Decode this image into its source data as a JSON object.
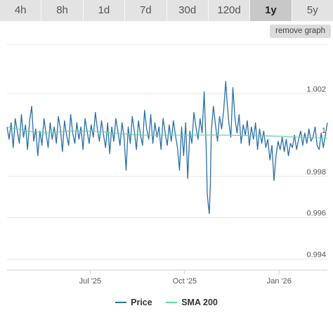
{
  "tabs": [
    {
      "label": "4h"
    },
    {
      "label": "8h"
    },
    {
      "label": "1d"
    },
    {
      "label": "7d"
    },
    {
      "label": "30d"
    },
    {
      "label": "120d"
    },
    {
      "label": "1y"
    },
    {
      "label": "5y"
    }
  ],
  "active_tab": "1y",
  "remove_label": "remove graph",
  "colors": {
    "price": "#2a6fa8",
    "sma": "#5ed69a",
    "grid": "#e6e6e6"
  },
  "chart_data": {
    "type": "line",
    "ylim": [
      0.9935,
      1.0045
    ],
    "yticks": [
      {
        "value": 1.002,
        "label": "1.002"
      },
      {
        "value": 1.0,
        "label": "1"
      },
      {
        "value": 0.998,
        "label": "0.998"
      },
      {
        "value": 0.996,
        "label": "0.996"
      },
      {
        "value": 0.994,
        "label": "0.994"
      }
    ],
    "xlim": [
      "2025-04-11",
      "2026-02-17"
    ],
    "xticks": [
      {
        "date": "2025-07-01",
        "label": "Jul '25"
      },
      {
        "date": "2025-10-01",
        "label": "Oct '25"
      },
      {
        "date": "2026-01-01",
        "label": "Jan '26"
      }
    ],
    "grid": true,
    "legend": "bottom",
    "series": [
      {
        "name": "Price",
        "points": [
          [
            "2025-04-11",
            1.0004
          ],
          [
            "2025-04-13",
            0.9998
          ],
          [
            "2025-04-15",
            1.0006
          ],
          [
            "2025-04-17",
            0.9994
          ],
          [
            "2025-04-19",
            1.0008
          ],
          [
            "2025-04-21",
            1.0002
          ],
          [
            "2025-04-23",
            0.9996
          ],
          [
            "2025-04-25",
            1.001
          ],
          [
            "2025-04-27",
            0.9999
          ],
          [
            "2025-04-29",
            1.0005
          ],
          [
            "2025-05-01",
            0.9993
          ],
          [
            "2025-05-03",
            1.0007
          ],
          [
            "2025-05-05",
            1.0014
          ],
          [
            "2025-05-07",
            0.9997
          ],
          [
            "2025-05-09",
            1.0003
          ],
          [
            "2025-05-11",
            0.999
          ],
          [
            "2025-05-13",
            1.0002
          ],
          [
            "2025-05-15",
            0.9995
          ],
          [
            "2025-05-17",
            1.0008
          ],
          [
            "2025-05-19",
            1.0001
          ],
          [
            "2025-05-21",
            0.9994
          ],
          [
            "2025-05-23",
            1.0006
          ],
          [
            "2025-05-25",
            0.9998
          ],
          [
            "2025-05-27",
            1.0004
          ],
          [
            "2025-05-29",
            0.9996
          ],
          [
            "2025-05-31",
            1.0009
          ],
          [
            "2025-06-02",
            1.0003
          ],
          [
            "2025-06-04",
            0.9992
          ],
          [
            "2025-06-06",
            1.0007
          ],
          [
            "2025-06-08",
            1.0
          ],
          [
            "2025-06-10",
            0.9995
          ],
          [
            "2025-06-12",
            1.001
          ],
          [
            "2025-06-14",
            1.0001
          ],
          [
            "2025-06-16",
            0.9996
          ],
          [
            "2025-06-18",
            1.0006
          ],
          [
            "2025-06-20",
            0.9998
          ],
          [
            "2025-06-22",
            1.0004
          ],
          [
            "2025-06-24",
            0.9993
          ],
          [
            "2025-06-26",
            1.0008
          ],
          [
            "2025-06-28",
            1.0002
          ],
          [
            "2025-06-30",
            0.9996
          ],
          [
            "2025-07-02",
            1.0005
          ],
          [
            "2025-07-04",
            0.9999
          ],
          [
            "2025-07-06",
            1.0011
          ],
          [
            "2025-07-08",
            1.0003
          ],
          [
            "2025-07-10",
            0.9997
          ],
          [
            "2025-07-12",
            1.0007
          ],
          [
            "2025-07-14",
            1.0
          ],
          [
            "2025-07-16",
            0.9994
          ],
          [
            "2025-07-18",
            1.0006
          ],
          [
            "2025-07-20",
            0.9991
          ],
          [
            "2025-07-22",
            1.0004
          ],
          [
            "2025-07-24",
            0.9997
          ],
          [
            "2025-07-26",
            1.0008
          ],
          [
            "2025-07-28",
            1.0002
          ],
          [
            "2025-07-30",
            0.9995
          ],
          [
            "2025-08-01",
            1.0006
          ],
          [
            "2025-08-03",
            0.9999
          ],
          [
            "2025-08-05",
            0.9983
          ],
          [
            "2025-08-07",
            1.0004
          ],
          [
            "2025-08-09",
            0.9996
          ],
          [
            "2025-08-11",
            1.0009
          ],
          [
            "2025-08-13",
            1.0002
          ],
          [
            "2025-08-15",
            0.9993
          ],
          [
            "2025-08-17",
            1.0007
          ],
          [
            "2025-08-19",
            1.0
          ],
          [
            "2025-08-21",
            0.9995
          ],
          [
            "2025-08-23",
            1.0012
          ],
          [
            "2025-08-25",
            1.0003
          ],
          [
            "2025-08-27",
            0.9998
          ],
          [
            "2025-08-29",
            1.001
          ],
          [
            "2025-08-31",
            0.9996
          ],
          [
            "2025-09-02",
            1.0006
          ],
          [
            "2025-09-04",
            0.9999
          ],
          [
            "2025-09-06",
            1.0004
          ],
          [
            "2025-09-08",
            0.9993
          ],
          [
            "2025-09-10",
            1.0008
          ],
          [
            "2025-09-12",
            1.0001
          ],
          [
            "2025-09-14",
            0.9995
          ],
          [
            "2025-09-16",
            1.0005
          ],
          [
            "2025-09-18",
            0.9997
          ],
          [
            "2025-09-20",
            1.0007
          ],
          [
            "2025-09-22",
            1.0
          ],
          [
            "2025-09-24",
            0.9994
          ],
          [
            "2025-09-26",
            0.9983
          ],
          [
            "2025-09-28",
            1.0004
          ],
          [
            "2025-09-30",
            0.999
          ],
          [
            "2025-10-02",
            1.0006
          ],
          [
            "2025-10-04",
            0.9979
          ],
          [
            "2025-10-06",
            1.0002
          ],
          [
            "2025-10-08",
            0.9996
          ],
          [
            "2025-10-10",
            1.0011
          ],
          [
            "2025-10-12",
            1.0004
          ],
          [
            "2025-10-14",
            0.9998
          ],
          [
            "2025-10-16",
            1.0008
          ],
          [
            "2025-10-18",
            1.0001
          ],
          [
            "2025-10-20",
            1.0021
          ],
          [
            "2025-10-22",
            0.9994
          ],
          [
            "2025-10-23",
            0.9972
          ],
          [
            "2025-10-24",
            0.9966
          ],
          [
            "2025-10-25",
            0.9962
          ],
          [
            "2025-10-26",
            0.9976
          ],
          [
            "2025-10-27",
            1.0002
          ],
          [
            "2025-10-29",
            1.0014
          ],
          [
            "2025-10-31",
            1.0005
          ],
          [
            "2025-11-02",
            0.9997
          ],
          [
            "2025-11-04",
            1.0009
          ],
          [
            "2025-11-06",
            1.0003
          ],
          [
            "2025-11-08",
            1.0012
          ],
          [
            "2025-11-10",
            1.0026
          ],
          [
            "2025-11-11",
            1.0018
          ],
          [
            "2025-11-13",
            1.0006
          ],
          [
            "2025-11-15",
            0.9999
          ],
          [
            "2025-11-17",
            1.0023
          ],
          [
            "2025-11-19",
            1.0008
          ],
          [
            "2025-11-21",
            1.0001
          ],
          [
            "2025-11-23",
            1.001
          ],
          [
            "2025-11-25",
            0.9996
          ],
          [
            "2025-11-27",
            1.0005
          ],
          [
            "2025-11-29",
            1.0
          ],
          [
            "2025-12-01",
            1.0007
          ],
          [
            "2025-12-03",
            0.9995
          ],
          [
            "2025-12-05",
            1.0004
          ],
          [
            "2025-12-07",
            0.9998
          ],
          [
            "2025-12-09",
            1.0006
          ],
          [
            "2025-12-11",
            0.9993
          ],
          [
            "2025-12-13",
            1.0003
          ],
          [
            "2025-12-15",
            0.9996
          ],
          [
            "2025-12-17",
            1.0002
          ],
          [
            "2025-12-19",
            0.9994
          ],
          [
            "2025-12-21",
            0.9998
          ],
          [
            "2025-12-23",
            0.9988
          ],
          [
            "2025-12-25",
            0.9995
          ],
          [
            "2025-12-27",
            0.9978
          ],
          [
            "2025-12-29",
            0.999
          ],
          [
            "2025-12-31",
            0.9997
          ],
          [
            "2026-01-02",
            0.9993
          ],
          [
            "2026-01-04",
            0.9999
          ],
          [
            "2026-01-06",
            0.9992
          ],
          [
            "2026-01-08",
            0.9998
          ],
          [
            "2026-01-10",
            0.999
          ],
          [
            "2026-01-12",
            0.9996
          ],
          [
            "2026-01-14",
            0.9994
          ],
          [
            "2026-01-16",
            1.0
          ],
          [
            "2026-01-18",
            0.9993
          ],
          [
            "2026-01-20",
            0.9998
          ],
          [
            "2026-01-22",
            1.0002
          ],
          [
            "2026-01-24",
            0.9995
          ],
          [
            "2026-01-26",
            1.0001
          ],
          [
            "2026-01-28",
            0.9996
          ],
          [
            "2026-01-30",
            1.0003
          ],
          [
            "2026-02-01",
            0.9997
          ],
          [
            "2026-02-03",
            0.9999
          ],
          [
            "2026-02-05",
            1.0004
          ],
          [
            "2026-02-07",
            0.9995
          ],
          [
            "2026-02-09",
            0.9993
          ],
          [
            "2026-02-11",
            1.0001
          ],
          [
            "2026-02-13",
            0.9994
          ],
          [
            "2026-02-15",
            1.0
          ],
          [
            "2026-02-17",
            1.0006
          ]
        ]
      },
      {
        "name": "SMA 200",
        "points": [
          [
            "2025-04-11",
            1.0004
          ],
          [
            "2025-05-01",
            1.0002
          ],
          [
            "2025-05-20",
            1.0001
          ],
          [
            "2025-06-10",
            1.0002
          ],
          [
            "2025-07-01",
            1.0002
          ],
          [
            "2025-07-25",
            1.0001
          ],
          [
            "2025-08-20",
            1.0
          ],
          [
            "2025-09-15",
            1.0
          ],
          [
            "2025-10-10",
            1.0
          ],
          [
            "2025-11-05",
            1.0
          ],
          [
            "2025-12-01",
            0.99998
          ],
          [
            "2025-12-25",
            0.99995
          ],
          [
            "2026-01-20",
            0.9999
          ],
          [
            "2026-02-17",
            0.99985
          ]
        ]
      }
    ]
  }
}
